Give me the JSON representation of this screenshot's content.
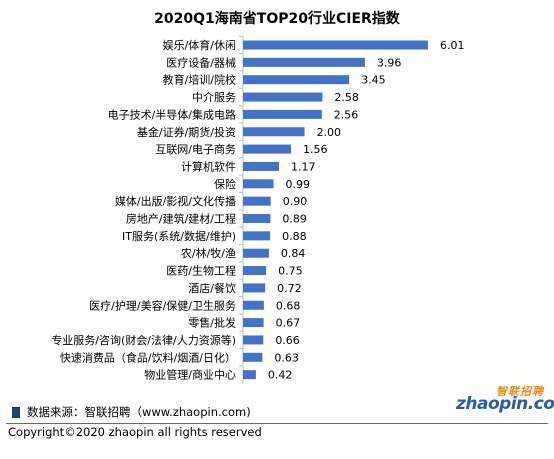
{
  "chart_data": {
    "type": "bar",
    "orientation": "horizontal",
    "title": "2020Q1海南省TOP20行业CIER指数",
    "categories": [
      "娱乐/体育/休闲",
      "医疗设备/器械",
      "教育/培训/院校",
      "中介服务",
      "电子技术/半导体/集成电路",
      "基金/证券/期货/投资",
      "互联网/电子商务",
      "计算机软件",
      "保险",
      "媒体/出版/影视/文化传播",
      "房地产/建筑/建材/工程",
      "IT服务(系统/数据/维护)",
      "农/林/牧/渔",
      "医药/生物工程",
      "酒店/餐饮",
      "医疗/护理/美容/保健/卫生服务",
      "零售/批发",
      "专业服务/咨询(财会/法律/人力资源等)",
      "快速消费品（食品/饮料/烟酒/日化）",
      "物业管理/商业中心"
    ],
    "value_labels": [
      "6.01",
      "3.96",
      "3.45",
      "2.58",
      "2.56",
      "2.00",
      "1.56",
      "1.17",
      "0.99",
      "0.90",
      "0.89",
      "0.88",
      "0.84",
      "0.75",
      "0.72",
      "0.68",
      "0.67",
      "0.66",
      "0.63",
      "0.42"
    ],
    "values": [
      6.01,
      3.96,
      3.45,
      2.58,
      2.56,
      2.0,
      1.56,
      1.17,
      0.99,
      0.9,
      0.89,
      0.88,
      0.84,
      0.75,
      0.72,
      0.68,
      0.67,
      0.66,
      0.63,
      0.42
    ],
    "xlim": [
      0,
      6.01
    ],
    "grid": false,
    "bar_color": "#4472c4"
  },
  "footer": {
    "source": "数据来源：智联招聘（www.zhaopin.com)",
    "copyright": "Copyright©2020 zhaopin all rights reserved"
  },
  "logo": {
    "cn": "智联招聘",
    "en": "zhaopin.com"
  }
}
